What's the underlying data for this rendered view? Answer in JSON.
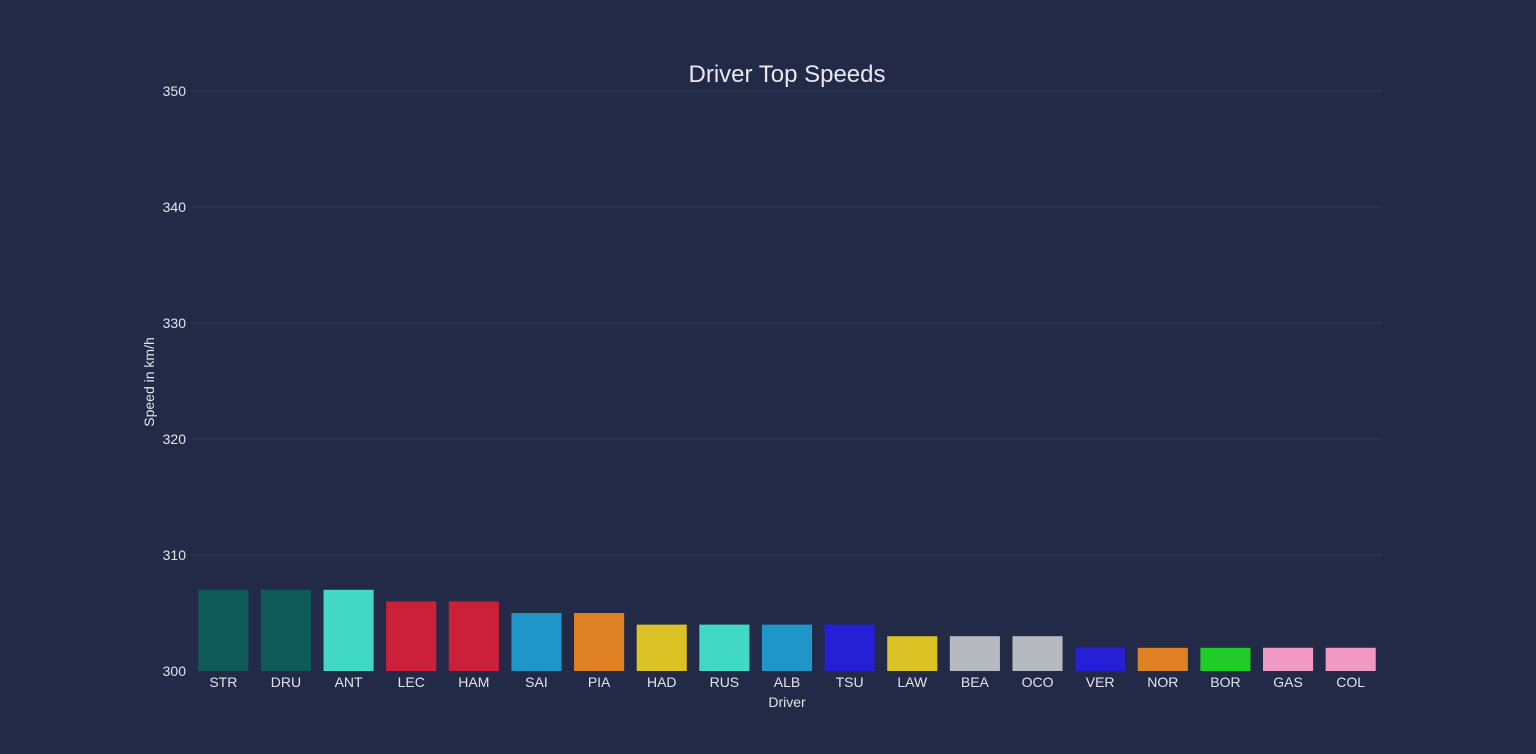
{
  "chart_data": {
    "type": "bar",
    "title": "Driver Top Speeds",
    "xlabel": "Driver",
    "ylabel": "Speed in km/h",
    "ylim": [
      300,
      350
    ],
    "yticks": [
      300,
      310,
      320,
      330,
      340,
      350
    ],
    "grid": true,
    "legend": "none",
    "categories": [
      "STR",
      "DRU",
      "ANT",
      "LEC",
      "HAM",
      "SAI",
      "PIA",
      "HAD",
      "RUS",
      "ALB",
      "TSU",
      "LAW",
      "BEA",
      "OCO",
      "VER",
      "NOR",
      "BOR",
      "GAS",
      "COL"
    ],
    "values": [
      307,
      307,
      307,
      306,
      306,
      305,
      305,
      304,
      304,
      304,
      304,
      303,
      303,
      303,
      302,
      302,
      302,
      302,
      302
    ],
    "colors": [
      "#0e5b57",
      "#0e5b57",
      "#41d9c5",
      "#cc1f3a",
      "#cc1f3a",
      "#1f96c7",
      "#de8024",
      "#dcc224",
      "#41d9c5",
      "#1f96c7",
      "#2520d6",
      "#dcc224",
      "#b6babf",
      "#b6babf",
      "#2520d6",
      "#de8024",
      "#21cc29",
      "#f09ac3",
      "#f09ac3"
    ]
  }
}
